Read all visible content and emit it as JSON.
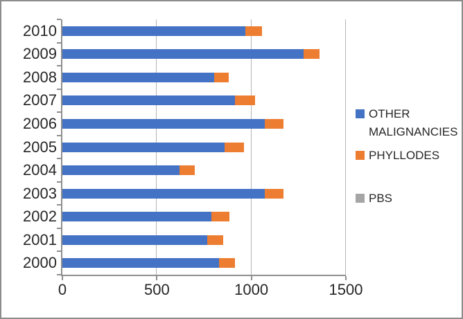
{
  "chart_data": {
    "type": "bar",
    "orientation": "horizontal",
    "stacked": true,
    "title": "",
    "xlabel": "",
    "ylabel": "",
    "categories": [
      "2010",
      "2009",
      "2008",
      "2007",
      "2006",
      "2005",
      "2004",
      "2003",
      "2002",
      "2001",
      "2000"
    ],
    "series": [
      {
        "name": "OTHER MALIGNANCIES",
        "color": "#4472C4",
        "values": [
          970,
          1275,
          805,
          915,
          1070,
          860,
          620,
          1070,
          790,
          765,
          830
        ]
      },
      {
        "name": "PHYLLODES",
        "color": "#ED7D31",
        "values": [
          85,
          85,
          75,
          105,
          100,
          100,
          80,
          100,
          95,
          85,
          85
        ]
      },
      {
        "name": "PBS",
        "color": "#A5A5A5",
        "values": [
          0,
          0,
          0,
          0,
          0,
          0,
          0,
          0,
          0,
          0,
          0
        ]
      }
    ],
    "xlim": [
      0,
      1500
    ],
    "x_tick_labels": [
      "0",
      "500",
      "1000",
      "1500"
    ],
    "x_tick_values": [
      0,
      500,
      1000,
      1500
    ],
    "grid": "vertical-major-gridlines",
    "legend_position": "right"
  },
  "legend": {
    "items": [
      {
        "label": "OTHER MALIGNANCIES",
        "color": "#4472C4"
      },
      {
        "label": "PHYLLODES",
        "color": "#ED7D31"
      },
      {
        "label": "PBS",
        "color": "#A5A5A5"
      }
    ]
  },
  "colors": {
    "bar_blue": "#4472C4",
    "bar_orange": "#ED7D31",
    "legend_gray": "#A5A5A5",
    "axis_line": "#8E8E8E",
    "gridline": "#B4B4B4",
    "text": "#262626",
    "frame_border": "#8C8C8C",
    "background": "#FFFFFF"
  }
}
